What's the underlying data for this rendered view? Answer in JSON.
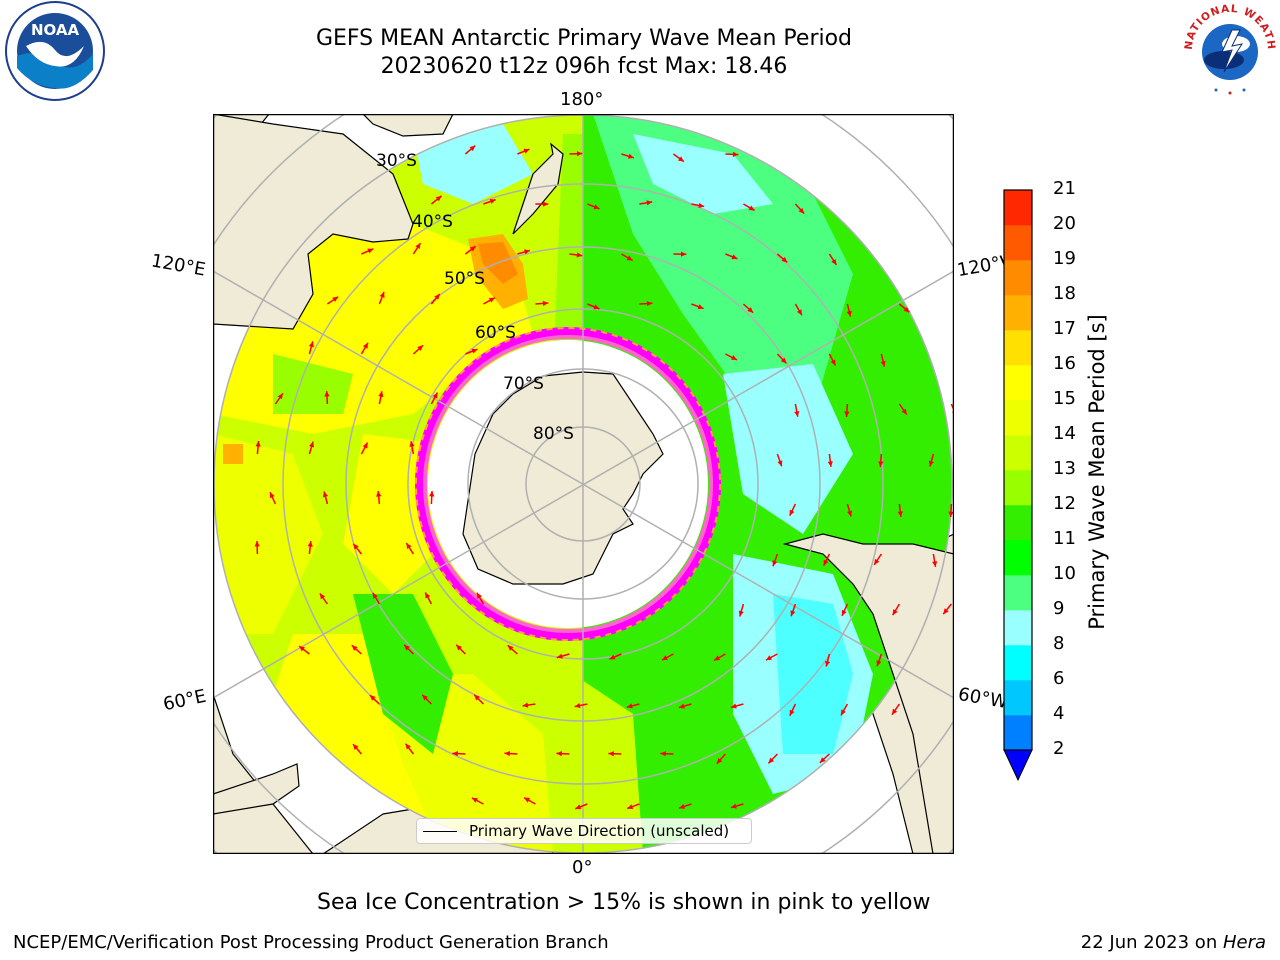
{
  "header": {
    "title_line1": "GEFS MEAN Antarctic Primary Wave Mean Period",
    "title_line2": "20230620 t12z 096h fcst   Max: 18.46"
  },
  "logos": {
    "left": "noaa-logo",
    "left_text": "NOAA",
    "right": "nws-logo",
    "right_text": "NATIONAL WEATHER SERVICE"
  },
  "map": {
    "projection": "south-polar-stereographic",
    "longitude_labels": {
      "top": "180°",
      "bottom": "0°",
      "upper_left": "120°E",
      "upper_right": "120°W",
      "lower_left": "60°E",
      "lower_right": "60°W"
    },
    "latitude_labels": [
      "30°S",
      "40°S",
      "50°S",
      "60°S",
      "70°S",
      "80°S"
    ],
    "legend_label": "Primary Wave Direction (unscaled)",
    "arrow_color": "#ff0000",
    "land_color": "#efebd7",
    "ice_colors": [
      "#ff00ff",
      "#ff66cc",
      "#ffa040",
      "#ffff00"
    ]
  },
  "colorbar": {
    "label": "Primary Wave Mean Period [s]",
    "ticks": [
      "2",
      "4",
      "6",
      "8",
      "9",
      "10",
      "11",
      "12",
      "13",
      "14",
      "15",
      "16",
      "17",
      "18",
      "19",
      "20",
      "21"
    ],
    "colors": [
      "#0080ff",
      "#00c8ff",
      "#00ffff",
      "#99ffff",
      "#4dff80",
      "#00ff00",
      "#33ee00",
      "#99ff00",
      "#ccff00",
      "#eeff00",
      "#ffff00",
      "#ffe000",
      "#ffb000",
      "#ff8c00",
      "#ff5a00",
      "#ff2800"
    ],
    "extend_color": "#0000ff"
  },
  "footer": {
    "ice_note": "Sea Ice Concentration > 15% is shown in pink to yellow",
    "credit": "NCEP/EMC/Verification Post Processing Product Generation Branch",
    "date_prefix": "22 Jun 2023 on ",
    "date_host": "Hera"
  }
}
